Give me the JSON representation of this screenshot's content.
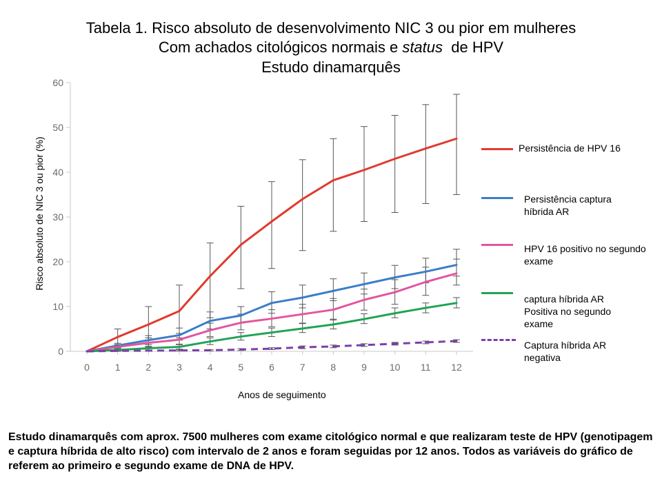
{
  "title": {
    "line1": "Tabela 1. Risco absoluto de desenvolvimento NIC 3 ou pior em mulheres",
    "line2_before": "Com achados citológicos normais e ",
    "line2_italic": "status",
    "line2_after": "  de HPV",
    "line3": "Estudo dinamarquês"
  },
  "footnote": "Estudo dinamarquês com aprox. 7500 mulheres com exame citológico normal e que realizaram teste de HPV  (genotipagem e captura híbrida de alto risco) com intervalo de 2 anos e foram seguidas por 12 anos. Todos as variáveis do gráfico de referem ao primeiro e segundo exame de DNA de HPV.",
  "chart_data": {
    "type": "line",
    "xlabel": "Anos de seguimento",
    "ylabel": "Risco absoluto de NIC 3 ou pior (%)",
    "x": [
      0,
      1,
      2,
      3,
      4,
      5,
      6,
      7,
      8,
      9,
      10,
      11,
      12
    ],
    "xticks": [
      "0",
      "1",
      "2",
      "3",
      "4",
      "5",
      "6",
      "7",
      "8",
      "9",
      "10",
      "11",
      "12"
    ],
    "ylim": [
      0,
      60
    ],
    "yticks": [
      "0",
      "10",
      "20",
      "30",
      "40",
      "50",
      "60"
    ],
    "grid": false,
    "legend_position": "right",
    "series": [
      {
        "name": "Persistência de HPV 16",
        "color": "#e03a2e",
        "dashed": false,
        "values": [
          0,
          3.2,
          6,
          9,
          16.8,
          23.8,
          29,
          34,
          38.2,
          40.5,
          43,
          45.3,
          47.5
        ],
        "err_low": [
          0,
          1.5,
          2,
          3,
          7.5,
          14,
          18.5,
          22.5,
          26.8,
          29,
          31,
          33,
          35
        ],
        "err_high": [
          0,
          5,
          10,
          14.8,
          24.2,
          32.4,
          37.9,
          42.8,
          47.5,
          50.2,
          52.7,
          55.1,
          57.4
        ]
      },
      {
        "name": "Persistência captura híbrida AR",
        "color": "#3a7dc8",
        "dashed": false,
        "values": [
          0,
          1.3,
          2.5,
          3.6,
          6.8,
          8,
          10.8,
          12,
          13.5,
          15,
          16.5,
          17.8,
          19.3
        ],
        "err_low": [
          0,
          0.8,
          1.5,
          2.5,
          5,
          6.3,
          8.5,
          9.7,
          11.3,
          12.8,
          14,
          15.3,
          16.8
        ],
        "err_high": [
          0,
          1.8,
          3.5,
          5.2,
          8.8,
          10,
          13.3,
          14.8,
          16.2,
          17.5,
          19.2,
          20.8,
          22.8
        ]
      },
      {
        "name": "HPV 16 positivo no segundo exame",
        "color": "#e2559e",
        "dashed": false,
        "values": [
          0,
          1,
          1.9,
          2.6,
          4.7,
          6.4,
          7.3,
          8.3,
          9.3,
          11.5,
          13.2,
          15.5,
          17.4
        ],
        "err_low": [
          0,
          0.5,
          1,
          1.5,
          3.3,
          4.8,
          5.5,
          6.3,
          7,
          9.2,
          10.5,
          12.5,
          14.8
        ],
        "err_high": [
          0,
          1.5,
          3,
          4,
          6.3,
          8.3,
          9.3,
          10.5,
          11.8,
          13.9,
          16,
          18.8,
          20.6
        ]
      },
      {
        "name": "captura híbrida AR Positiva no segundo exame",
        "color": "#1fa354",
        "dashed": false,
        "values": [
          0,
          0.3,
          0.7,
          1,
          2.2,
          3.3,
          4.2,
          5.1,
          6,
          7.2,
          8.5,
          9.7,
          10.8
        ],
        "err_low": [
          0,
          0.1,
          0.3,
          0.5,
          1.5,
          2.5,
          3.3,
          4.2,
          5,
          6.2,
          7.5,
          8.6,
          9.7
        ],
        "err_high": [
          0,
          0.6,
          1.1,
          1.6,
          3,
          4.2,
          5.2,
          6.2,
          7.2,
          8.4,
          9.7,
          10.8,
          12
        ]
      },
      {
        "name": "Captura híbrida AR negativa",
        "color": "#7b3fa8",
        "dashed": true,
        "values": [
          0,
          0.1,
          0.15,
          0.2,
          0.25,
          0.4,
          0.6,
          0.9,
          1.1,
          1.4,
          1.7,
          2,
          2.3
        ],
        "err_low": [
          0,
          0,
          0,
          0.1,
          0.1,
          0.2,
          0.4,
          0.6,
          0.8,
          1.1,
          1.4,
          1.7,
          2
        ],
        "err_high": [
          0,
          0.2,
          0.3,
          0.35,
          0.4,
          0.6,
          0.8,
          1.2,
          1.4,
          1.7,
          2,
          2.3,
          2.6
        ]
      }
    ],
    "legend": [
      {
        "label": "Persistência de HPV 16"
      },
      {
        "label": "Persistência captura híbrida AR"
      },
      {
        "label": "HPV 16 positivo no segundo exame"
      },
      {
        "label": "captura híbrida AR Positiva no segundo exame"
      },
      {
        "label": "Captura híbrida AR negativa"
      }
    ]
  }
}
